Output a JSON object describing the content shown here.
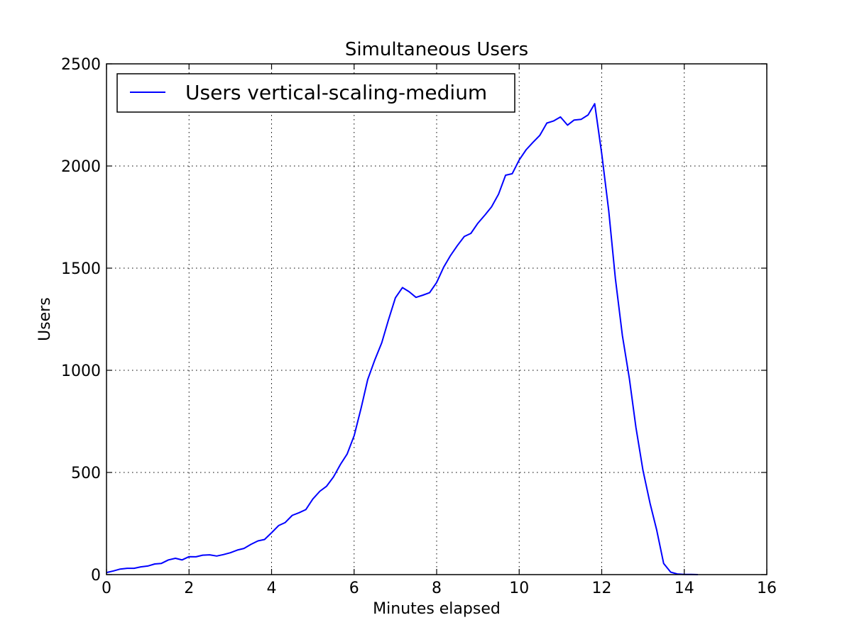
{
  "chart_data": {
    "type": "line",
    "title": "Simultaneous Users",
    "xlabel": "Minutes elapsed",
    "ylabel": "Users",
    "xlim": [
      0,
      16
    ],
    "ylim": [
      0,
      2500
    ],
    "xticks": [
      0,
      2,
      4,
      6,
      8,
      10,
      12,
      14,
      16
    ],
    "yticks": [
      0,
      500,
      1000,
      1500,
      2000,
      2500
    ],
    "xtick_labels": [
      "0",
      "2",
      "4",
      "6",
      "8",
      "10",
      "12",
      "14",
      "16"
    ],
    "ytick_labels": [
      "0",
      "500",
      "1000",
      "1500",
      "2000",
      "2500"
    ],
    "grid": true,
    "legend_position": "upper-left",
    "series": [
      {
        "name": "Users vertical-scaling-medium",
        "color": "#0000ff",
        "x": [
          0,
          0.17,
          0.33,
          0.5,
          0.67,
          0.83,
          1.0,
          1.17,
          1.33,
          1.5,
          1.67,
          1.83,
          2.0,
          2.17,
          2.33,
          2.5,
          2.67,
          2.83,
          3.0,
          3.17,
          3.33,
          3.5,
          3.67,
          3.83,
          4.0,
          4.17,
          4.33,
          4.5,
          4.67,
          4.83,
          5.0,
          5.17,
          5.33,
          5.5,
          5.67,
          5.83,
          6.0,
          6.17,
          6.33,
          6.5,
          6.67,
          6.83,
          7.0,
          7.17,
          7.33,
          7.5,
          7.67,
          7.83,
          8.0,
          8.17,
          8.33,
          8.5,
          8.67,
          8.83,
          9.0,
          9.17,
          9.33,
          9.5,
          9.67,
          9.83,
          10.0,
          10.17,
          10.33,
          10.5,
          10.67,
          10.83,
          11.0,
          11.17,
          11.33,
          11.5,
          11.67,
          11.83,
          12.0,
          12.17,
          12.33,
          12.5,
          12.67,
          12.83,
          13.0,
          13.17,
          13.33,
          13.5,
          13.67,
          13.83,
          14.0,
          14.17,
          14.33
        ],
        "y": [
          10,
          18,
          27,
          31,
          31,
          38,
          42,
          52,
          55,
          72,
          80,
          72,
          88,
          87,
          95,
          97,
          91,
          98,
          107,
          120,
          128,
          148,
          165,
          172,
          205,
          240,
          255,
          290,
          303,
          318,
          370,
          408,
          432,
          478,
          540,
          590,
          680,
          815,
          955,
          1050,
          1135,
          1245,
          1355,
          1405,
          1385,
          1357,
          1368,
          1380,
          1430,
          1505,
          1560,
          1610,
          1655,
          1670,
          1720,
          1760,
          1800,
          1862,
          1955,
          1962,
          2030,
          2080,
          2115,
          2150,
          2210,
          2220,
          2240,
          2200,
          2225,
          2228,
          2250,
          2305,
          2060,
          1780,
          1450,
          1170,
          960,
          720,
          510,
          350,
          220,
          55,
          12,
          3,
          1,
          1,
          0
        ]
      }
    ]
  }
}
